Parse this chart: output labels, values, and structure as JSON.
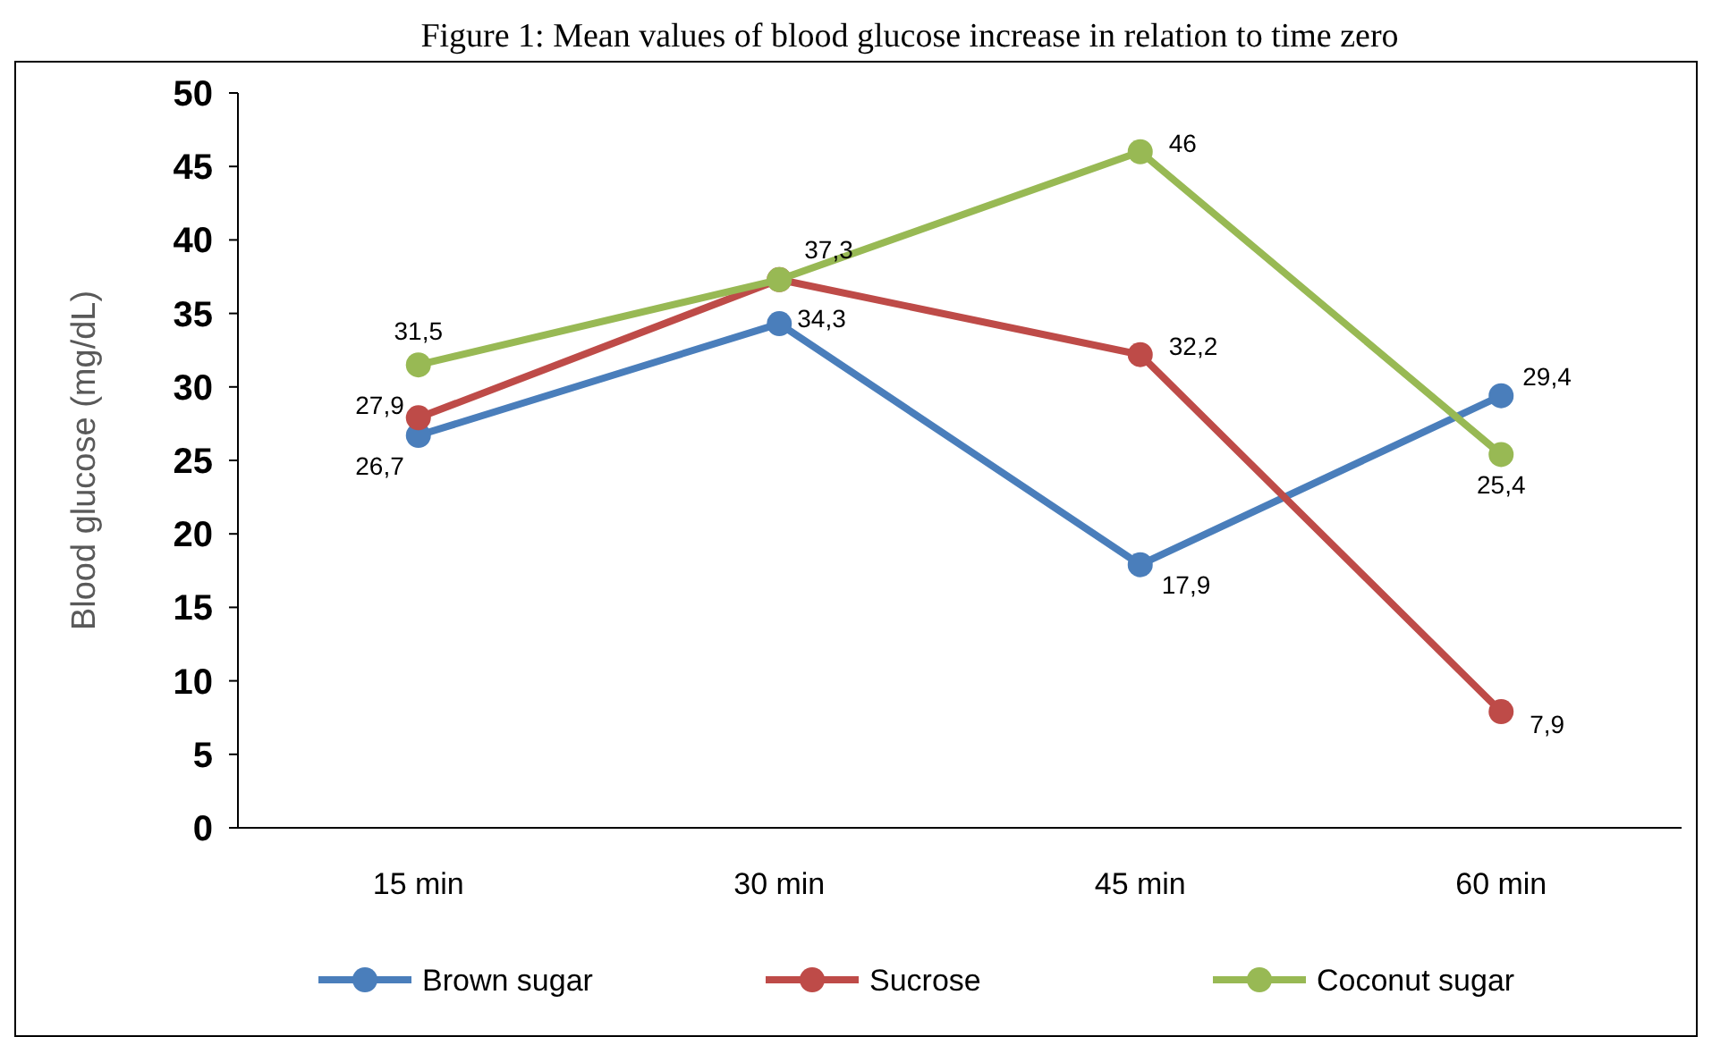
{
  "chart_data": {
    "type": "line",
    "title": "Figure 1: Mean values of blood glucose increase in relation to time zero",
    "ylabel": "Blood glucose (mg/dL)",
    "categories": [
      "15 min",
      "30 min",
      "45 min",
      "60 min"
    ],
    "series": [
      {
        "name": "Brown sugar",
        "color": "#4a7ebb",
        "values": [
          26.7,
          34.3,
          17.9,
          29.4
        ],
        "value_labels": [
          "26,7",
          "34,3",
          "17,9",
          "29,4"
        ]
      },
      {
        "name": "Sucrose",
        "color": "#be4b48",
        "values": [
          27.9,
          37.3,
          32.2,
          7.9
        ],
        "value_labels": [
          "27,9",
          "37,3",
          "32,2",
          "7,9"
        ]
      },
      {
        "name": "Coconut sugar",
        "color": "#98b954",
        "values": [
          31.5,
          37.3,
          46,
          25.4
        ],
        "value_labels": [
          "31,5",
          null,
          "46",
          "25,4"
        ]
      }
    ],
    "ylim": [
      0,
      50
    ],
    "yticks": [
      0,
      5,
      10,
      15,
      20,
      25,
      30,
      35,
      40,
      45,
      50
    ],
    "grid": false,
    "legend": "bottom",
    "marker": "circle",
    "line_style": "solid"
  }
}
